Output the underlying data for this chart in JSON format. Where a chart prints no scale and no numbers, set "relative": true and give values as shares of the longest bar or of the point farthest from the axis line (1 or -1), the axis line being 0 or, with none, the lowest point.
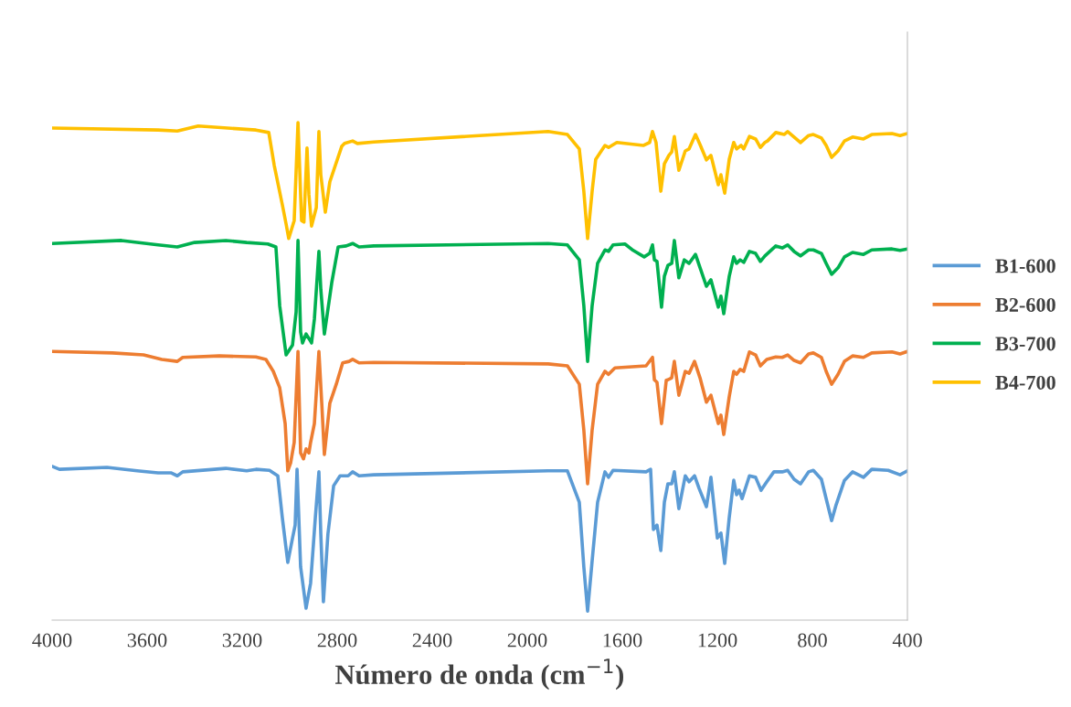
{
  "chart_data": {
    "type": "line",
    "xlabel": "Número de onda (cm$^{−1}$)",
    "relative": true,
    "xlim": [
      4000,
      400
    ],
    "xticks": [
      4000,
      3600,
      3200,
      2800,
      2400,
      2000,
      1600,
      1200,
      800,
      400
    ],
    "grid": false,
    "legend": "right",
    "marker": "none",
    "line_style": "solid",
    "series": [
      {
        "name": "B1-600",
        "color": "#5b9bd5",
        "x": [
          4000,
          3969,
          3769,
          3642,
          3554,
          3500,
          3473,
          3450,
          3269,
          3181,
          3142,
          3085,
          3050,
          3031,
          3008,
          2988,
          2977,
          2969,
          2954,
          2931,
          2912,
          2892,
          2877,
          2869,
          2858,
          2839,
          2815,
          2788,
          2754,
          2735,
          2708,
          2646,
          1912,
          1831,
          1781,
          1762,
          1746,
          1727,
          1704,
          1673,
          1658,
          1639,
          1500,
          1481,
          1469,
          1454,
          1438,
          1423,
          1408,
          1392,
          1381,
          1362,
          1335,
          1319,
          1296,
          1277,
          1246,
          1227,
          1200,
          1185,
          1169,
          1150,
          1131,
          1119,
          1108,
          1096,
          1065,
          1039,
          1016,
          992,
          962,
          927,
          904,
          877,
          850,
          816,
          796,
          762,
          742,
          719,
          700,
          665,
          631,
          585,
          550,
          481,
          431,
          400
        ],
        "values": [
          0.309,
          0.303,
          0.307,
          0.3,
          0.296,
          0.296,
          0.29,
          0.298,
          0.305,
          0.3,
          0.303,
          0.301,
          0.29,
          0.206,
          0.116,
          0.165,
          0.191,
          0.303,
          0.107,
          0.024,
          0.074,
          0.206,
          0.298,
          0.173,
          0.037,
          0.173,
          0.27,
          0.29,
          0.29,
          0.298,
          0.29,
          0.292,
          0.3,
          0.3,
          0.237,
          0.107,
          0.018,
          0.119,
          0.237,
          0.298,
          0.287,
          0.301,
          0.298,
          0.303,
          0.182,
          0.191,
          0.14,
          0.237,
          0.274,
          0.274,
          0.298,
          0.224,
          0.29,
          0.278,
          0.29,
          0.265,
          0.228,
          0.287,
          0.165,
          0.175,
          0.114,
          0.206,
          0.281,
          0.252,
          0.261,
          0.244,
          0.29,
          0.287,
          0.261,
          0.278,
          0.298,
          0.298,
          0.301,
          0.283,
          0.274,
          0.298,
          0.301,
          0.283,
          0.244,
          0.2,
          0.232,
          0.281,
          0.298,
          0.287,
          0.303,
          0.301,
          0.292,
          0.3
        ]
      },
      {
        "name": "B2-600",
        "color": "#ed7d31",
        "x": [
          4000,
          3746,
          3615,
          3538,
          3473,
          3450,
          3296,
          3142,
          3100,
          3069,
          3042,
          3019,
          3008,
          2996,
          2981,
          2965,
          2954,
          2942,
          2931,
          2919,
          2912,
          2896,
          2877,
          2865,
          2854,
          2831,
          2804,
          2777,
          2750,
          2735,
          2708,
          2646,
          1912,
          1831,
          1781,
          1762,
          1746,
          1727,
          1704,
          1673,
          1658,
          1631,
          1500,
          1473,
          1465,
          1454,
          1435,
          1415,
          1408,
          1392,
          1381,
          1362,
          1335,
          1319,
          1296,
          1273,
          1246,
          1227,
          1196,
          1185,
          1173,
          1150,
          1131,
          1119,
          1104,
          1089,
          1065,
          1039,
          1019,
          992,
          954,
          927,
          904,
          877,
          850,
          816,
          796,
          762,
          742,
          719,
          692,
          665,
          631,
          585,
          550,
          465,
          431,
          400
        ],
        "values": [
          0.54,
          0.537,
          0.533,
          0.524,
          0.52,
          0.528,
          0.531,
          0.529,
          0.524,
          0.5,
          0.467,
          0.395,
          0.3,
          0.316,
          0.357,
          0.54,
          0.336,
          0.324,
          0.344,
          0.336,
          0.357,
          0.395,
          0.54,
          0.436,
          0.333,
          0.436,
          0.474,
          0.517,
          0.52,
          0.524,
          0.517,
          0.518,
          0.515,
          0.511,
          0.474,
          0.382,
          0.274,
          0.382,
          0.474,
          0.5,
          0.494,
          0.507,
          0.511,
          0.528,
          0.483,
          0.478,
          0.395,
          0.482,
          0.483,
          0.487,
          0.52,
          0.452,
          0.5,
          0.496,
          0.52,
          0.487,
          0.438,
          0.452,
          0.395,
          0.412,
          0.373,
          0.449,
          0.5,
          0.494,
          0.504,
          0.5,
          0.539,
          0.533,
          0.511,
          0.524,
          0.529,
          0.528,
          0.533,
          0.522,
          0.517,
          0.535,
          0.537,
          0.528,
          0.5,
          0.474,
          0.494,
          0.52,
          0.531,
          0.528,
          0.537,
          0.539,
          0.535,
          0.54
        ]
      },
      {
        "name": "B3-700",
        "color": "#00b050",
        "x": [
          4000,
          3708,
          3554,
          3473,
          3400,
          3269,
          3181,
          3092,
          3058,
          3042,
          3015,
          2988,
          2973,
          2965,
          2954,
          2946,
          2931,
          2915,
          2908,
          2896,
          2877,
          2869,
          2854,
          2823,
          2796,
          2762,
          2735,
          2708,
          2646,
          1912,
          1831,
          1781,
          1762,
          1746,
          1727,
          1704,
          1673,
          1658,
          1639,
          1589,
          1554,
          1508,
          1485,
          1473,
          1465,
          1454,
          1435,
          1423,
          1408,
          1392,
          1381,
          1362,
          1339,
          1319,
          1292,
          1246,
          1227,
          1196,
          1185,
          1173,
          1150,
          1131,
          1119,
          1104,
          1089,
          1065,
          1039,
          1019,
          1000,
          954,
          927,
          904,
          877,
          850,
          816,
          796,
          762,
          742,
          719,
          692,
          665,
          631,
          585,
          550,
          465,
          431,
          400
        ],
        "values": [
          0.757,
          0.763,
          0.754,
          0.75,
          0.759,
          0.763,
          0.759,
          0.756,
          0.75,
          0.632,
          0.533,
          0.553,
          0.619,
          0.763,
          0.579,
          0.557,
          0.575,
          0.563,
          0.557,
          0.605,
          0.741,
          0.665,
          0.575,
          0.678,
          0.75,
          0.752,
          0.757,
          0.75,
          0.752,
          0.757,
          0.754,
          0.724,
          0.632,
          0.52,
          0.632,
          0.717,
          0.744,
          0.741,
          0.754,
          0.756,
          0.743,
          0.73,
          0.737,
          0.754,
          0.724,
          0.721,
          0.629,
          0.691,
          0.713,
          0.717,
          0.763,
          0.688,
          0.724,
          0.717,
          0.735,
          0.671,
          0.684,
          0.629,
          0.651,
          0.616,
          0.691,
          0.73,
          0.717,
          0.724,
          0.719,
          0.741,
          0.737,
          0.721,
          0.732,
          0.752,
          0.748,
          0.754,
          0.741,
          0.732,
          0.744,
          0.744,
          0.737,
          0.717,
          0.695,
          0.708,
          0.73,
          0.739,
          0.735,
          0.744,
          0.746,
          0.743,
          0.746
        ]
      },
      {
        "name": "B4-700",
        "color": "#ffc000",
        "x": [
          4000,
          3554,
          3473,
          3385,
          3142,
          3088,
          3065,
          3031,
          3015,
          3004,
          2981,
          2965,
          2950,
          2940,
          2927,
          2919,
          2908,
          2888,
          2877,
          2869,
          2850,
          2831,
          2781,
          2769,
          2735,
          2715,
          2646,
          1912,
          1831,
          1781,
          1762,
          1746,
          1727,
          1712,
          1673,
          1658,
          1623,
          1512,
          1485,
          1473,
          1458,
          1438,
          1423,
          1404,
          1392,
          1381,
          1362,
          1335,
          1319,
          1292,
          1273,
          1246,
          1227,
          1196,
          1185,
          1169,
          1150,
          1131,
          1119,
          1100,
          1089,
          1065,
          1039,
          1019,
          1000,
          989,
          954,
          919,
          904,
          877,
          850,
          816,
          796,
          762,
          742,
          719,
          692,
          665,
          631,
          585,
          550,
          465,
          431,
          400
        ],
        "values": [
          0.989,
          0.985,
          0.983,
          0.993,
          0.985,
          0.98,
          0.914,
          0.835,
          0.796,
          0.767,
          0.803,
          1.0,
          0.803,
          0.8,
          0.949,
          0.855,
          0.792,
          0.829,
          0.982,
          0.895,
          0.82,
          0.881,
          0.952,
          0.958,
          0.963,
          0.958,
          0.961,
          0.982,
          0.976,
          0.947,
          0.862,
          0.767,
          0.862,
          0.926,
          0.954,
          0.95,
          0.96,
          0.954,
          0.96,
          0.982,
          0.96,
          0.862,
          0.917,
          0.934,
          0.941,
          0.972,
          0.904,
          0.943,
          0.947,
          0.976,
          0.956,
          0.925,
          0.934,
          0.875,
          0.895,
          0.858,
          0.926,
          0.96,
          0.947,
          0.954,
          0.947,
          0.972,
          0.967,
          0.95,
          0.96,
          0.963,
          0.98,
          0.976,
          0.982,
          0.971,
          0.96,
          0.974,
          0.976,
          0.969,
          0.954,
          0.93,
          0.943,
          0.963,
          0.971,
          0.967,
          0.976,
          0.978,
          0.974,
          0.978
        ]
      }
    ]
  }
}
